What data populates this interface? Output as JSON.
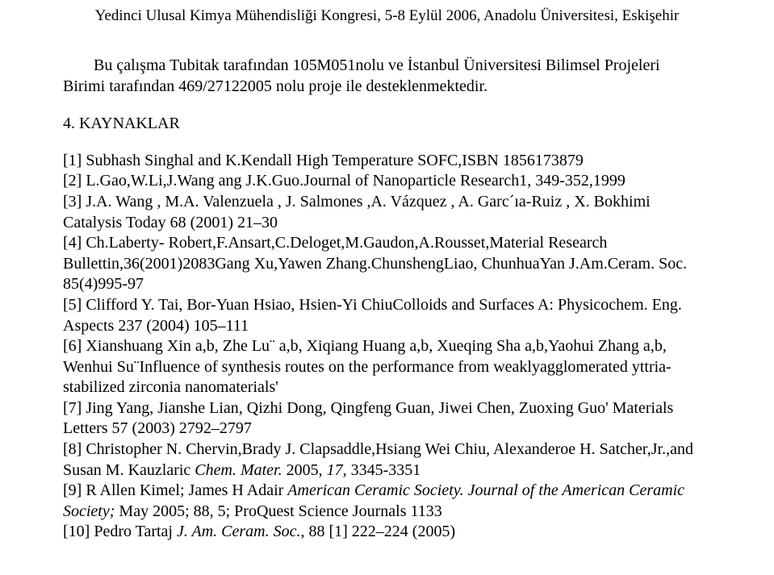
{
  "header": {
    "text": "Yedinci Ulusal Kimya Mühendisliği Kongresi, 5-8 Eylül 2006, Anadolu Üniversitesi, Eskişehir"
  },
  "intro": {
    "line1": "Bu çalışma  Tubitak tarafından 105M051nolu ve İstanbul Üniversitesi Bilimsel Projeleri",
    "line2": "Birimi tarafından 469/27122005 nolu proje ile desteklenmektedir."
  },
  "section": {
    "title": "4. KAYNAKLAR"
  },
  "refs": {
    "r1_a": "[1] Subhash Singhal and K.Kendall High Temperature SOFC,ISBN 1856173879",
    "r2_a": "[2] L.Gao,W.Li,J.Wang ang J.K.Guo.Journal of Nanoparticle Research1, 349-352,1999",
    "r3_a": "[3] J.A. Wang , M.A. Valenzuela , J. Salmones ,A. Vázquez , A. Garc´ıa-Ruiz , X. Bokhimi Catalysis Today 68 (2001) 21–30",
    "r4_a": "[4] Ch.Laberty- Robert,F.Ansart,C.Deloget,M.Gaudon,A.Rousset,Material Research Bullettin,36(2001)2083Gang Xu,Yawen Zhang.ChunshengLiao, ChunhuaYan J.Am.Ceram. Soc. 85(4)995-97",
    "r5_a": "[5] Clifford Y. Tai, Bor-Yuan Hsiao, Hsien-Yi ChiuColloids and Surfaces A:  Physicochem. Eng. Aspects 237 (2004) 105–111",
    "r6_a": "[6] Xianshuang Xin a,b, Zhe Lu¨ a,b, Xiqiang Huang a,b, Xueqing Sha a,b,Yaohui Zhang a,b, Wenhui Su¨Influence of synthesis routes on the performance from weaklyagglomerated  yttria-stabilized zirconia nanomaterials'",
    "r7_a": "[7] Jing Yang, Jianshe Lian, Qizhi Dong, Qingfeng Guan, Jiwei Chen, Zuoxing Guo' Materials Letters 57 (2003) 2792–2797",
    "r8_a": "[8] Christopher N. Chervin,Brady J. Clapsaddle,Hsiang Wei Chiu, Alexanderoe H. Satcher,Jr.,and Susan M. Kauzlaric ",
    "r8_b": "Chem. Mater. ",
    "r8_c": "2005, ",
    "r8_d": "17, ",
    "r8_e": "3345-3351",
    "r9_a": "[9] R Allen Kimel; James H Adair ",
    "r9_b": "American Ceramic Society. Journal of the American Ceramic Society; ",
    "r9_c": "May 2005; 88, 5; ProQuest Science Journals 1133",
    "r10_a": "[10] Pedro Tartaj ",
    "r10_b": "J. Am. Ceram. Soc.",
    "r10_c": ", 88 [1] 222–224 (2005)"
  }
}
